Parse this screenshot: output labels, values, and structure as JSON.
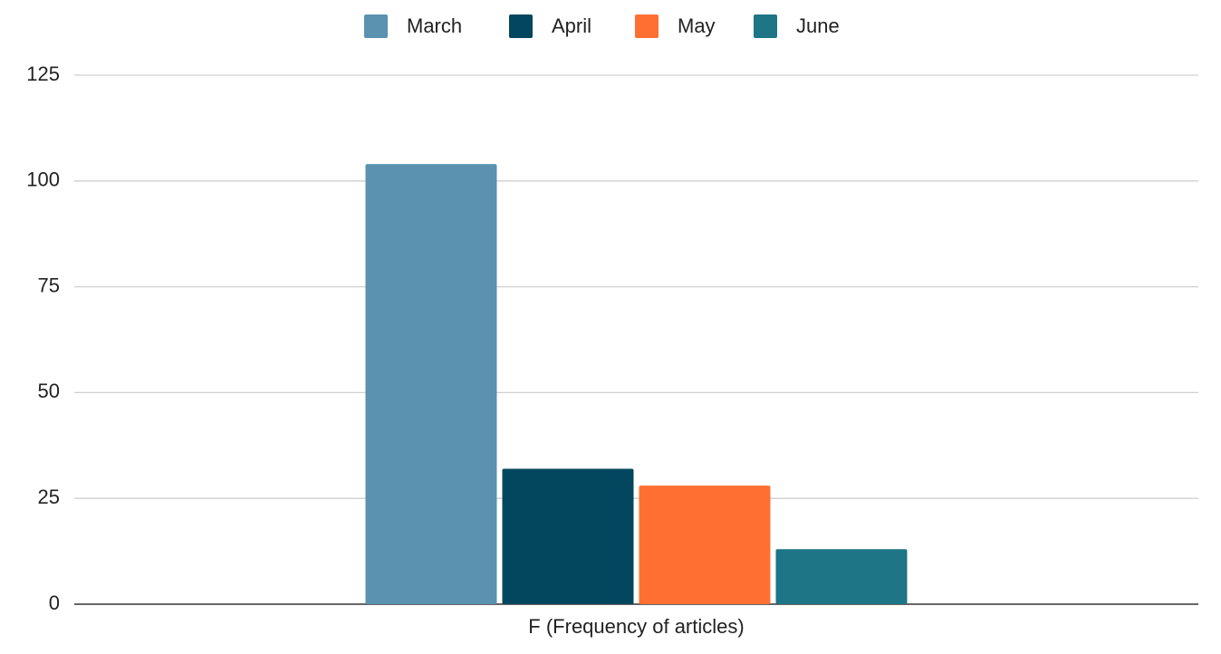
{
  "chart_data": {
    "type": "bar",
    "categories": [
      "F (Frequency of articles)"
    ],
    "series": [
      {
        "name": "March",
        "color": "#5b92b0",
        "values": [
          104
        ]
      },
      {
        "name": "April",
        "color": "#02475e",
        "values": [
          32
        ]
      },
      {
        "name": "May",
        "color": "#ff6f31",
        "values": [
          28
        ]
      },
      {
        "name": "June",
        "color": "#1d7585",
        "values": [
          13
        ]
      }
    ],
    "ylim": [
      0,
      125
    ],
    "yticks": [
      0,
      25,
      50,
      75,
      100,
      125
    ],
    "grid": true,
    "legend": "top"
  }
}
